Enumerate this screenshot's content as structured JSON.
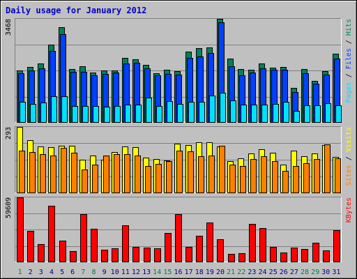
{
  "chart_data": {
    "type": "bar",
    "title": "Daily usage for January 2012",
    "categories": [
      "1",
      "2",
      "3",
      "4",
      "5",
      "6",
      "7",
      "8",
      "9",
      "10",
      "11",
      "12",
      "13",
      "14",
      "15",
      "16",
      "17",
      "18",
      "19",
      "20",
      "21",
      "22",
      "23",
      "24",
      "25",
      "26",
      "27",
      "28",
      "29",
      "30",
      "31"
    ],
    "weekend_days": [
      "1",
      "7",
      "8",
      "14",
      "15",
      "21",
      "22",
      "28",
      "29"
    ],
    "colors": {
      "background": "#c0c0c0",
      "title": "#0000cc",
      "weekday_label": "#000080",
      "weekend_label": "#008040",
      "hits": "#00805c",
      "files": "#0040ff",
      "pages": "#00e0ff",
      "visits": "#ffff00",
      "sites": "#ff8000",
      "kbytes": "#ff0000",
      "legend_slash": "#000000"
    },
    "panels": [
      {
        "id": "hits-files-pages",
        "max_label": "3468",
        "ylim": [
          0,
          3468
        ],
        "legend": [
          {
            "text": "Hits",
            "color": "#00805c"
          },
          {
            "text": "Files",
            "color": "#0040ff"
          },
          {
            "text": "Pages",
            "color": "#00e0ff"
          }
        ],
        "series": [
          {
            "name": "Hits",
            "color": "#00805c",
            "values": [
              1740,
              1840,
              1960,
              2610,
              3190,
              1780,
              1880,
              1660,
              1740,
              1730,
              2150,
              2120,
              1930,
              1640,
              1760,
              1710,
              2370,
              2480,
              2500,
              3463,
              2130,
              1780,
              1760,
              1980,
              1830,
              1850,
              1150,
              1770,
              1380,
              1710,
              2290
            ]
          },
          {
            "name": "Files",
            "color": "#0040ff",
            "values": [
              1640,
              1740,
              1800,
              2400,
              2960,
              1680,
              1680,
              1580,
              1620,
              1660,
              1960,
              2000,
              1800,
              1580,
              1620,
              1600,
              2160,
              2200,
              2310,
              3360,
              1870,
              1560,
              1660,
              1800,
              1750,
              1760,
              1000,
              1650,
              1290,
              1600,
              2130
            ]
          },
          {
            "name": "Pages",
            "color": "#00e0ff",
            "values": [
              690,
              610,
              650,
              860,
              870,
              550,
              540,
              530,
              510,
              550,
              580,
              580,
              820,
              550,
              700,
              600,
              680,
              690,
              890,
              980,
              730,
              580,
              580,
              590,
              620,
              690,
              380,
              560,
              560,
              640,
              570
            ]
          }
        ]
      },
      {
        "id": "visits-sites",
        "max_label": "293",
        "ylim": [
          0,
          293
        ],
        "legend": [
          {
            "text": "Visits",
            "color": "#ffff00"
          },
          {
            "text": "Sites",
            "color": "#ff8000"
          }
        ],
        "series": [
          {
            "name": "Visits",
            "color": "#ffff00",
            "values": [
              293,
              233,
              206,
              202,
              210,
              210,
              146,
              165,
              147,
              180,
              205,
              203,
              156,
              150,
              144,
              218,
              213,
              224,
              225,
              207,
              141,
              152,
              174,
              193,
              178,
              124,
              188,
              163,
              173,
              212,
              159
            ]
          },
          {
            "name": "Sites",
            "color": "#ff8000",
            "values": [
              186,
              182,
              171,
              166,
              201,
              178,
              104,
              124,
              164,
              172,
              172,
              165,
              119,
              127,
              141,
              187,
              185,
              162,
              165,
              208,
              126,
              119,
              150,
              162,
              140,
              98,
              119,
              132,
              151,
              214,
              154
            ]
          }
        ]
      },
      {
        "id": "kbytes",
        "max_label": "59609",
        "ylim": [
          0,
          59609
        ],
        "legend": [
          {
            "text": "KBytes",
            "color": "#ff0000"
          }
        ],
        "series": [
          {
            "name": "KBytes",
            "color": "#ff0000",
            "values": [
              59609,
              28300,
              16070,
              51970,
              19720,
              9830,
              43830,
              30490,
              11020,
              12470,
              33580,
              13660,
              12780,
              12570,
              26560,
              44050,
              13360,
              24170,
              36500,
              20960,
              7380,
              7690,
              34740,
              30980,
              13520,
              8330,
              12640,
              11740,
              17480,
              10590,
              28980
            ]
          }
        ]
      }
    ]
  }
}
